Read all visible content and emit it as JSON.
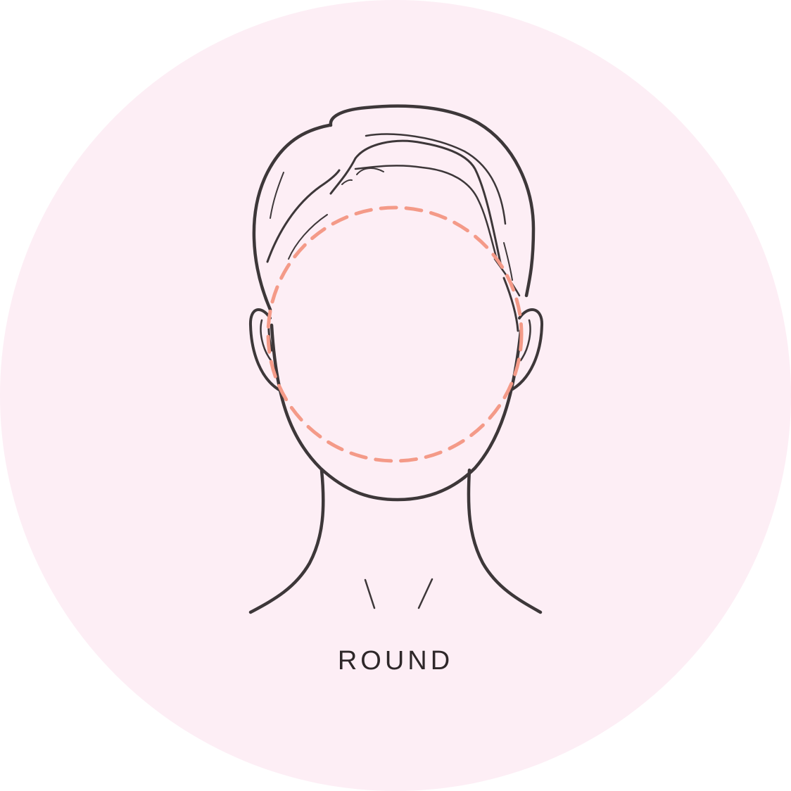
{
  "illustration": {
    "label": "ROUND",
    "icon": "round-face-shape-icon"
  },
  "colors": {
    "background_circle": "#fdeef5",
    "line_art": "#3d3739",
    "outline_dashed": "#f49a88",
    "label_text": "#2e2729"
  }
}
